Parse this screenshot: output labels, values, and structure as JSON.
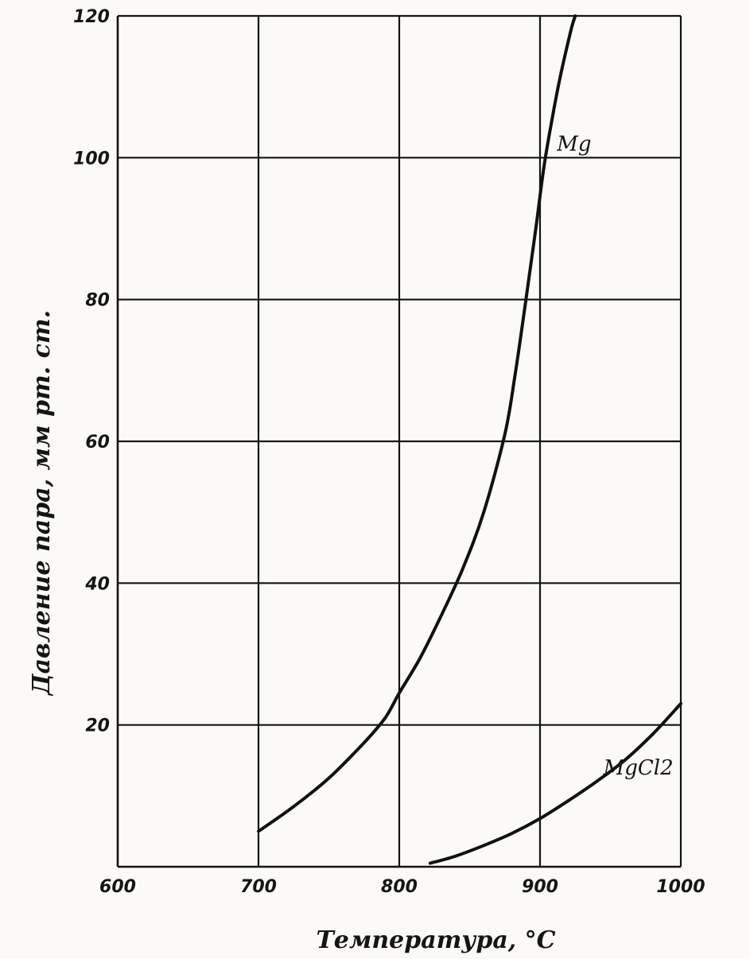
{
  "chart_data": {
    "type": "line",
    "xlabel": "Температура, °С",
    "ylabel": "Давление пара, мм рт. ст.",
    "xlim": [
      600,
      1000
    ],
    "ylim": [
      0,
      120
    ],
    "x_ticks": [
      "600",
      "700",
      "800",
      "900",
      "1000"
    ],
    "y_ticks": [
      "20",
      "40",
      "60",
      "80",
      "100",
      "120"
    ],
    "grid": true,
    "series": [
      {
        "name": "Mg",
        "points": [
          [
            700,
            5
          ],
          [
            725,
            8.5
          ],
          [
            750,
            12.5
          ],
          [
            775,
            17.5
          ],
          [
            790,
            21
          ],
          [
            800,
            24.5
          ],
          [
            815,
            29.5
          ],
          [
            830,
            35.5
          ],
          [
            845,
            42
          ],
          [
            860,
            50
          ],
          [
            875,
            61
          ],
          [
            882,
            69
          ],
          [
            890,
            80
          ],
          [
            897,
            90
          ],
          [
            903,
            99
          ],
          [
            910,
            107
          ],
          [
            915,
            112
          ],
          [
            922,
            118
          ],
          [
            925,
            120
          ]
        ]
      },
      {
        "name": "MgCl2",
        "points": [
          [
            822,
            0.5
          ],
          [
            840,
            1.5
          ],
          [
            860,
            3
          ],
          [
            880,
            4.7
          ],
          [
            900,
            6.8
          ],
          [
            920,
            9.3
          ],
          [
            940,
            12
          ],
          [
            960,
            15
          ],
          [
            980,
            18.7
          ],
          [
            1000,
            23
          ]
        ]
      }
    ]
  }
}
